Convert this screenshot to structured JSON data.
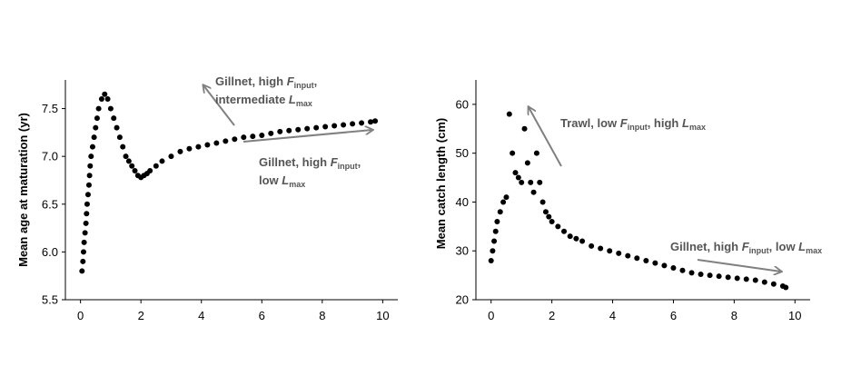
{
  "colors": {
    "points": "#000000",
    "arrows": "#808080",
    "annotations": "#555555",
    "axes": "#000000"
  },
  "chart_data": [
    {
      "type": "scatter",
      "title": "",
      "xlabel": "",
      "ylabel": "Mean age at maturation (yr)",
      "xlim": [
        -0.5,
        10.5
      ],
      "ylim": [
        5.5,
        7.8
      ],
      "xticks": [
        "0",
        "2",
        "4",
        "6",
        "8",
        "10"
      ],
      "xtick_values": [
        0,
        2,
        4,
        6,
        8,
        10
      ],
      "yticks": [
        "5.5",
        "6.0",
        "6.5",
        "7.0",
        "7.5"
      ],
      "ytick_values": [
        5.5,
        6.0,
        6.5,
        7.0,
        7.5
      ],
      "grid": false,
      "series": [
        {
          "x": [
            0.05,
            0.08,
            0.1,
            0.12,
            0.15,
            0.18,
            0.2,
            0.22,
            0.25,
            0.28,
            0.3,
            0.32,
            0.35,
            0.4,
            0.45,
            0.5,
            0.55,
            0.6,
            0.7,
            0.8,
            0.9,
            1.0,
            1.1,
            1.2,
            1.3,
            1.4,
            1.5,
            1.6,
            1.7,
            1.8,
            1.9,
            2.0,
            2.1,
            2.2,
            2.3,
            2.5,
            2.7,
            3.0,
            3.3,
            3.6,
            3.9,
            4.2,
            4.5,
            4.8,
            5.1,
            5.4,
            5.7,
            6.0,
            6.3,
            6.6,
            6.9,
            7.2,
            7.5,
            7.8,
            8.1,
            8.4,
            8.7,
            9.0,
            9.3,
            9.6,
            9.75
          ],
          "y": [
            5.8,
            5.9,
            6.0,
            6.1,
            6.2,
            6.3,
            6.4,
            6.5,
            6.6,
            6.7,
            6.8,
            6.9,
            7.0,
            7.1,
            7.2,
            7.3,
            7.4,
            7.5,
            7.6,
            7.65,
            7.6,
            7.5,
            7.4,
            7.3,
            7.2,
            7.1,
            7.0,
            6.95,
            6.9,
            6.85,
            6.8,
            6.78,
            6.8,
            6.82,
            6.85,
            6.9,
            6.95,
            7.0,
            7.05,
            7.08,
            7.1,
            7.12,
            7.14,
            7.16,
            7.18,
            7.2,
            7.21,
            7.22,
            7.24,
            7.26,
            7.27,
            7.28,
            7.29,
            7.3,
            7.31,
            7.32,
            7.33,
            7.34,
            7.35,
            7.36,
            7.37
          ]
        }
      ],
      "annotations": [
        {
          "text": "Gillnet, high ",
          "italic": "F",
          "sub": "input",
          "tail": ",",
          "line2": "intermediate ",
          "italic2": "L",
          "sub2": "max"
        },
        {
          "text": "Gillnet, high ",
          "italic": "F",
          "sub": "input",
          "tail": ",",
          "line2": "low ",
          "italic2": "L",
          "sub2": "max"
        }
      ]
    },
    {
      "type": "scatter",
      "title": "",
      "xlabel": "",
      "ylabel": "Mean catch length (cm)",
      "xlim": [
        -0.5,
        10.5
      ],
      "ylim": [
        20,
        65
      ],
      "xticks": [
        "0",
        "2",
        "4",
        "6",
        "8",
        "10"
      ],
      "xtick_values": [
        0,
        2,
        4,
        6,
        8,
        10
      ],
      "yticks": [
        "20",
        "30",
        "40",
        "50",
        "60"
      ],
      "ytick_values": [
        20,
        30,
        40,
        50,
        60
      ],
      "grid": false,
      "series": [
        {
          "x": [
            0.0,
            0.05,
            0.1,
            0.15,
            0.2,
            0.3,
            0.4,
            0.5,
            0.6,
            0.7,
            0.8,
            0.9,
            1.0,
            1.1,
            1.2,
            1.3,
            1.4,
            1.5,
            1.6,
            1.7,
            1.8,
            1.9,
            2.0,
            2.2,
            2.4,
            2.6,
            2.8,
            3.0,
            3.3,
            3.6,
            3.9,
            4.2,
            4.5,
            4.8,
            5.1,
            5.4,
            5.7,
            6.0,
            6.3,
            6.6,
            6.9,
            7.2,
            7.5,
            7.8,
            8.1,
            8.4,
            8.7,
            9.0,
            9.3,
            9.6,
            9.7
          ],
          "y": [
            28,
            30,
            32,
            34,
            36,
            38,
            40,
            41,
            58,
            50,
            46,
            45,
            44,
            55,
            48,
            44,
            42,
            50,
            44,
            40,
            38,
            37,
            36,
            35,
            34,
            33,
            32.5,
            32,
            31,
            30.5,
            30,
            29.5,
            29,
            28.5,
            28,
            27.5,
            27,
            26.5,
            26,
            25.5,
            25.2,
            25,
            24.8,
            24.6,
            24.4,
            24.2,
            24,
            23.6,
            23.2,
            22.8,
            22.5
          ]
        }
      ],
      "annotations": [
        {
          "text": "Trawl, low ",
          "italic": "F",
          "sub": "input",
          "tail": ", high ",
          "italic2": "L",
          "sub2": "max"
        },
        {
          "text": "Gillnet, high ",
          "italic": "F",
          "sub": "input",
          "tail": ", low ",
          "italic2": "L",
          "sub2": "max"
        }
      ]
    }
  ]
}
